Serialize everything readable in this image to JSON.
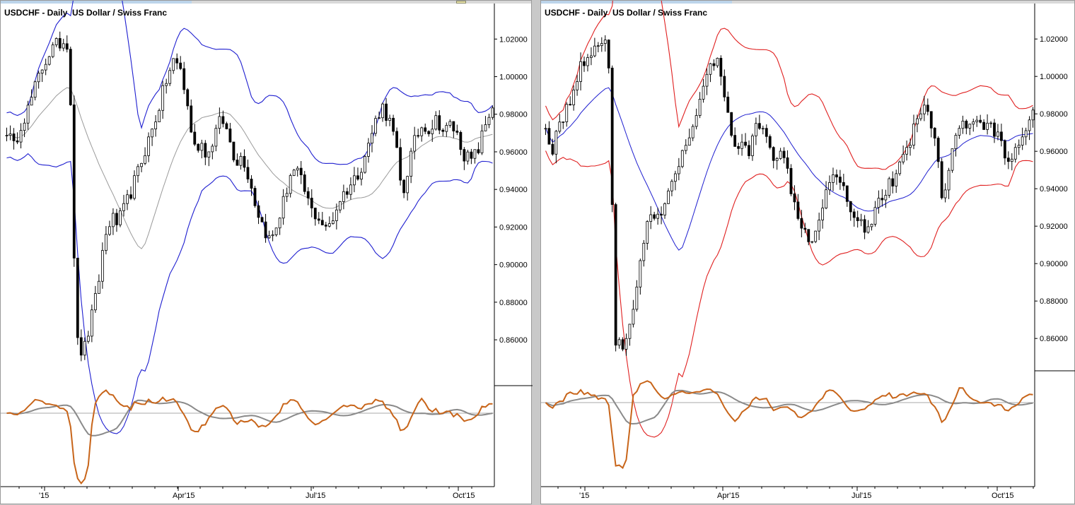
{
  "chart_data": [
    {
      "type": "candlestick",
      "title": "USDCHF - Daily  US Dollar / Swiss Franc",
      "x_ticks": [
        "'15",
        "Apr'15",
        "Jul'15",
        "Oct'15"
      ],
      "y_ticks": [
        "1.02000",
        "1.00000",
        "0.98000",
        "0.96000",
        "0.94000",
        "0.92000",
        "0.90000",
        "0.88000",
        "0.86000"
      ],
      "ylim": [
        0.842,
        1.028
      ],
      "overlays": [
        "upper band",
        "middle band",
        "lower band"
      ],
      "colors": {
        "candles": "#000000",
        "bands": "#1f1fd0",
        "middle": "#9a9a9a",
        "oscillator_fast": "#c8651a",
        "oscillator_slow": "#8a8a8a"
      },
      "close": [
        0.972,
        0.962,
        0.975,
        0.982,
        0.993,
        1.004,
        1.012,
        1.016,
        1.019,
        1.018,
        0.86,
        0.852,
        0.868,
        0.885,
        0.912,
        0.925,
        0.922,
        0.93,
        0.94,
        0.95,
        0.962,
        0.972,
        0.985,
        0.998,
        1.008,
        1.005,
        0.985,
        0.962,
        0.965,
        0.958,
        0.97,
        0.978,
        0.968,
        0.955,
        0.958,
        0.945,
        0.93,
        0.92,
        0.912,
        0.922,
        0.935,
        0.95,
        0.948,
        0.938,
        0.928,
        0.925,
        0.918,
        0.925,
        0.935,
        0.94,
        0.945,
        0.952,
        0.962,
        0.975,
        0.985,
        0.978,
        0.965,
        0.935,
        0.955,
        0.968,
        0.975,
        0.972,
        0.978,
        0.97,
        0.975,
        0.968,
        0.958,
        0.955,
        0.962,
        0.975,
        0.985
      ]
    },
    {
      "type": "candlestick",
      "title": "USDCHF - Daily  US Dollar / Swiss Franc",
      "x_ticks": [
        "'15",
        "Apr'15",
        "Jul'15",
        "Oct'15"
      ],
      "y_ticks": [
        "1.02000",
        "1.00000",
        "0.98000",
        "0.96000",
        "0.94000",
        "0.92000",
        "0.90000",
        "0.88000",
        "0.86000"
      ],
      "ylim": [
        0.848,
        1.028
      ],
      "overlays": [
        "upper band",
        "middle line",
        "lower band"
      ],
      "colors": {
        "candles": "#000000",
        "bands": "#e02020",
        "middle": "#1f1fd0",
        "oscillator_fast": "#c8651a",
        "oscillator_slow": "#8a8a8a"
      },
      "close": [
        0.972,
        0.962,
        0.975,
        0.982,
        0.993,
        1.004,
        1.012,
        1.016,
        1.019,
        1.018,
        0.86,
        0.852,
        0.868,
        0.885,
        0.912,
        0.925,
        0.922,
        0.93,
        0.94,
        0.95,
        0.962,
        0.972,
        0.985,
        0.998,
        1.008,
        1.005,
        0.985,
        0.962,
        0.965,
        0.958,
        0.97,
        0.978,
        0.968,
        0.955,
        0.958,
        0.945,
        0.93,
        0.92,
        0.912,
        0.922,
        0.935,
        0.95,
        0.948,
        0.938,
        0.928,
        0.925,
        0.918,
        0.925,
        0.935,
        0.94,
        0.945,
        0.952,
        0.962,
        0.975,
        0.985,
        0.978,
        0.965,
        0.935,
        0.955,
        0.968,
        0.975,
        0.972,
        0.978,
        0.97,
        0.975,
        0.968,
        0.958,
        0.955,
        0.962,
        0.975,
        0.985
      ]
    }
  ]
}
